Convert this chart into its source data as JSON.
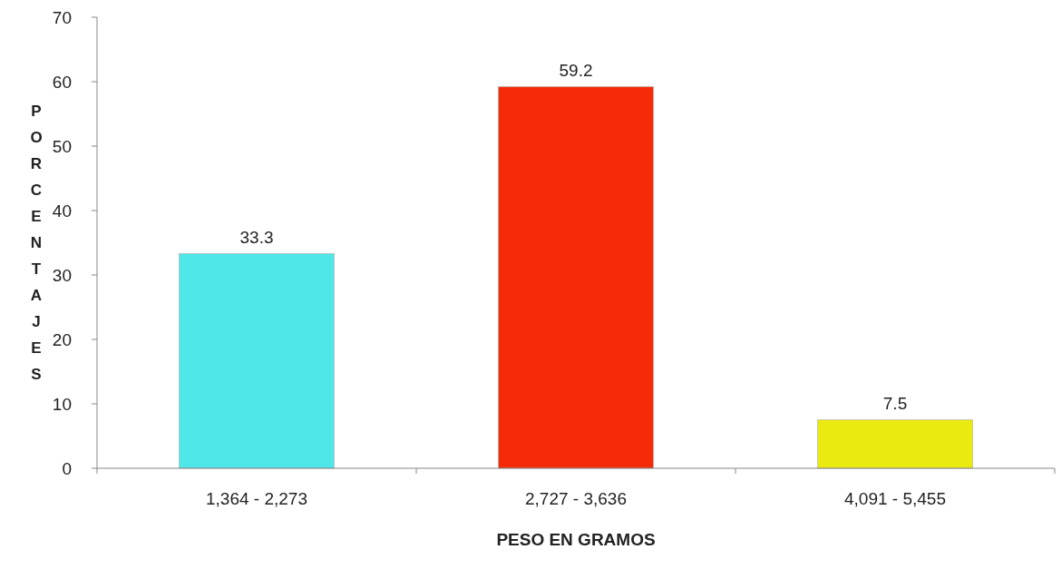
{
  "chart_data": {
    "type": "bar",
    "xlabel": "PESO EN GRAMOS",
    "ylabel": "PORCENTAJES",
    "categories": [
      "1,364 - 2,273",
      "2,727 - 3,636",
      "4,091 - 5,455"
    ],
    "values": [
      33.3,
      59.2,
      7.5
    ],
    "colors": [
      "#4ee6e6",
      "#f52a08",
      "#eaea10"
    ],
    "ylim": [
      0,
      70
    ],
    "yticks": [
      0,
      10,
      20,
      30,
      40,
      50,
      60,
      70
    ],
    "grid": false,
    "data_labels": true
  }
}
